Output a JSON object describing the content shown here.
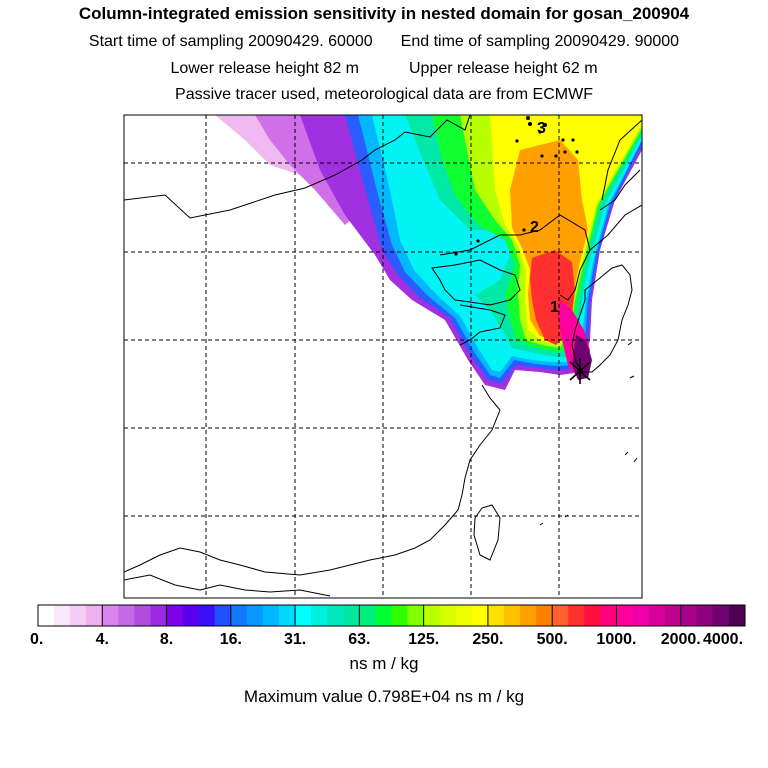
{
  "header": {
    "title": "Column-integrated emission sensitivity in nested domain for gosan_200904",
    "start_label": "Start time of sampling 20090429. 60000",
    "end_label": "End time of sampling 20090429. 90000",
    "lower_label": "Lower release height   82 m",
    "upper_label": "Upper release height   62 m",
    "tracer_line": "Passive tracer used, meteorological data are from ECMWF"
  },
  "map": {
    "markers": [
      "1",
      "2",
      "3"
    ]
  },
  "colorbar": {
    "tick_labels": [
      "0.",
      "4.",
      "8.",
      "16.",
      "31.",
      "63.",
      "125.",
      "250.",
      "500.",
      "1000.",
      "2000.",
      "4000."
    ],
    "colors": [
      "#ffffff",
      "#fbe7fb",
      "#f5ccf5",
      "#eeb0ee",
      "#d987ee",
      "#c56ae6",
      "#b04de0",
      "#9a2be0",
      "#7f00e8",
      "#5a00ee",
      "#3a10f5",
      "#2050ff",
      "#1478ff",
      "#0898ff",
      "#00b8ff",
      "#00d8ff",
      "#00ffff",
      "#00f0e0",
      "#00e8c0",
      "#00e8a0",
      "#00ee80",
      "#00ff30",
      "#30ff00",
      "#80ff00",
      "#b8ff00",
      "#d8ff00",
      "#f0ff00",
      "#ffff00",
      "#ffe000",
      "#ffc000",
      "#ffa000",
      "#ff8000",
      "#ff6030",
      "#ff3030",
      "#ff1040",
      "#ff0080",
      "#ff00a0",
      "#f000a8",
      "#d8009c",
      "#c00090",
      "#a8008a",
      "#8c0080",
      "#700070",
      "#500050"
    ],
    "units": "ns m / kg",
    "max_label": "Maximum value  0.798E+04 ns m / kg"
  }
}
